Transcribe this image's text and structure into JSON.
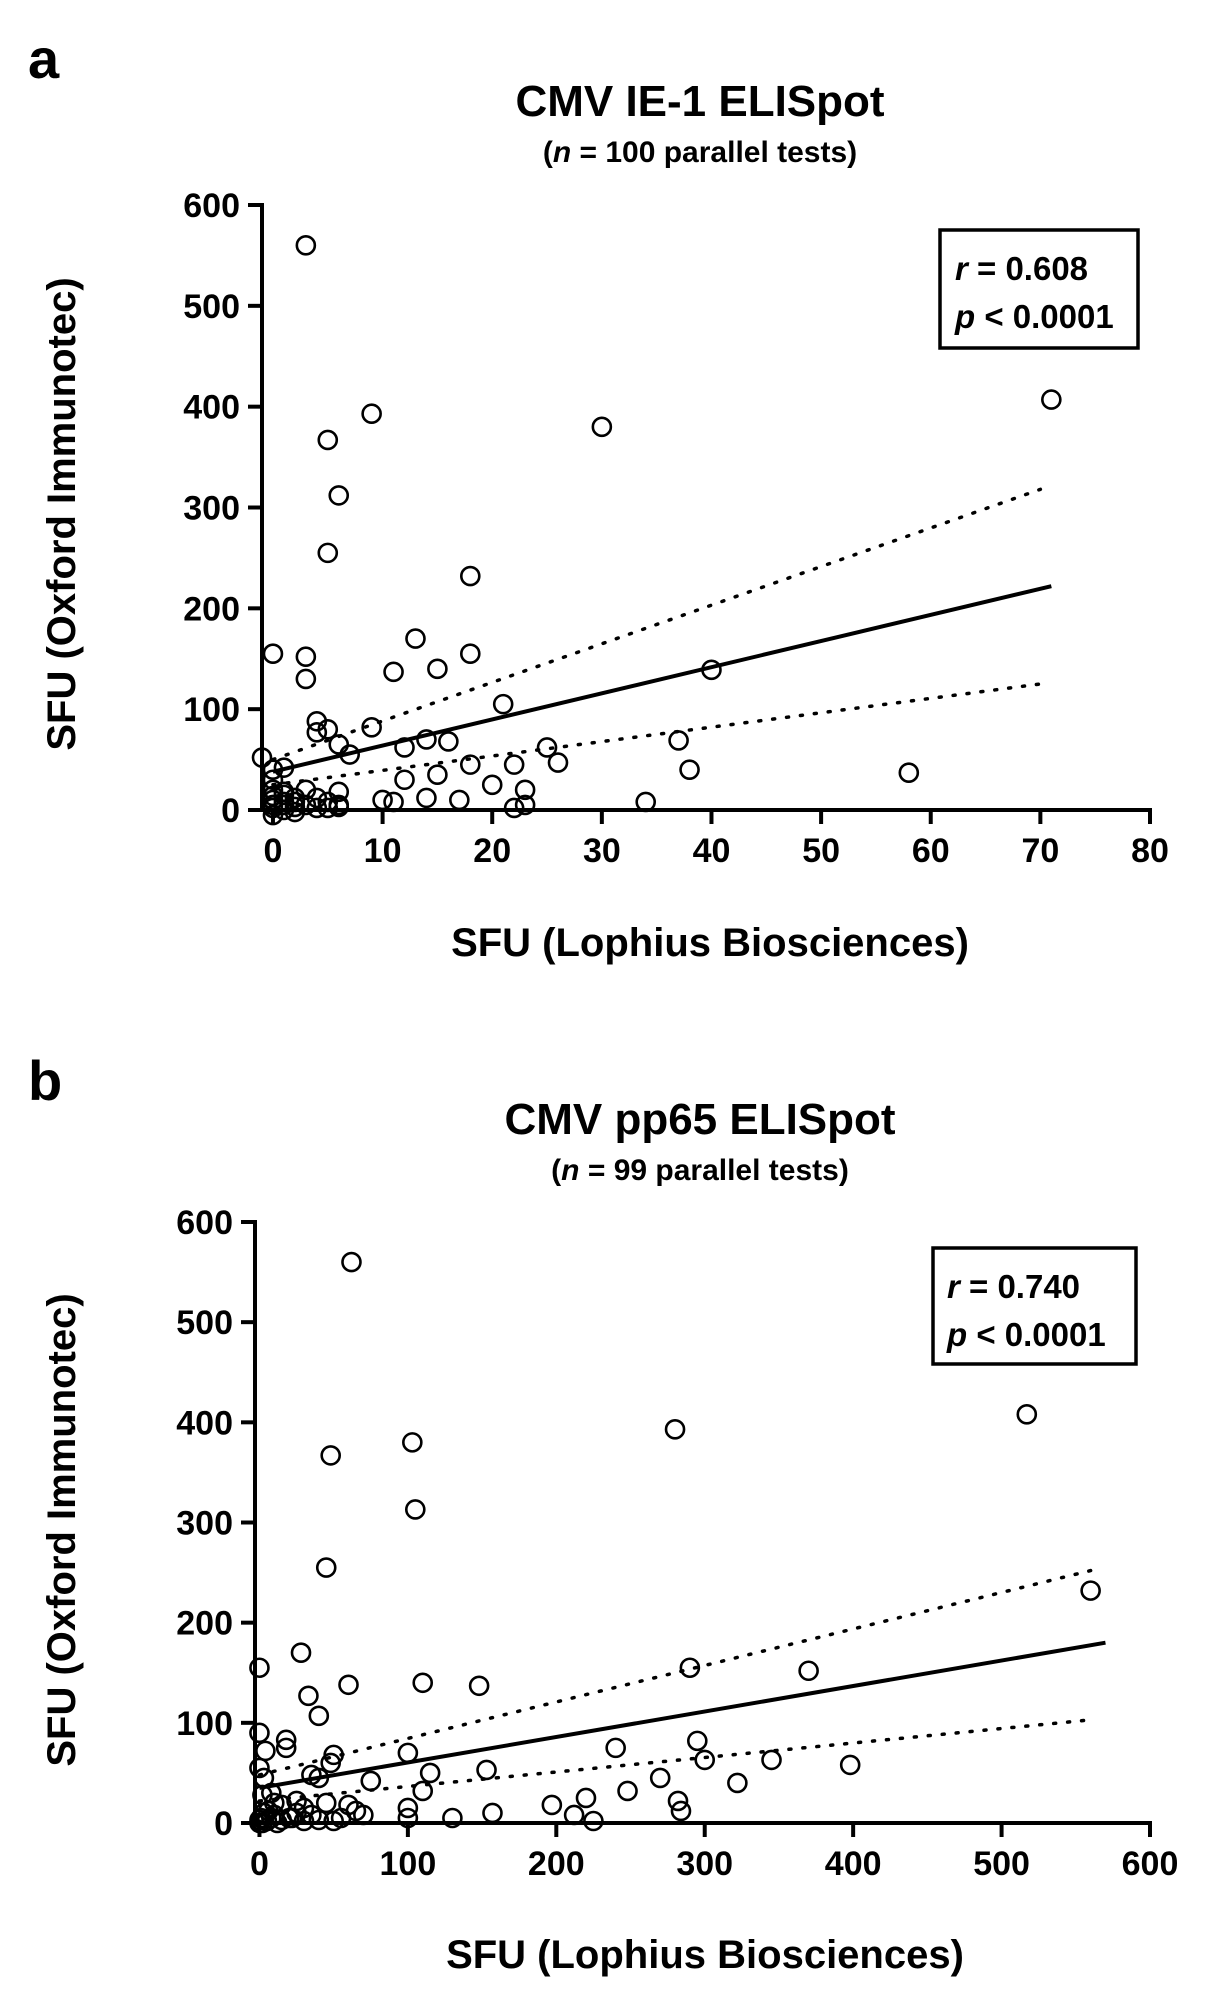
{
  "chart_data": [
    {
      "type": "scatter",
      "panel_label": "a",
      "title": "CMV IE-1 ELISpot",
      "subtitle": {
        "open": "(",
        "n_symbol": "n",
        "rest": " = 100 parallel tests)"
      },
      "xlabel": "SFU (Lophius Biosciences)",
      "ylabel": "SFU (Oxford Immunotec)",
      "xlim": [
        -1,
        80
      ],
      "ylim": [
        0,
        600
      ],
      "xticks": [
        "0",
        "10",
        "20",
        "30",
        "40",
        "50",
        "60",
        "70",
        "80"
      ],
      "yticks": [
        "0",
        "100",
        "200",
        "300",
        "400",
        "500",
        "600"
      ],
      "stats": {
        "r_symbol": "r",
        "r_text": " = 0.608",
        "p_symbol": "p",
        "p_text": " < 0.0001"
      },
      "regression": {
        "x": [
          0,
          71
        ],
        "y": [
          38,
          222
        ]
      },
      "ci_upper": {
        "x": [
          0,
          70
        ],
        "y": [
          50,
          318
        ]
      },
      "ci_lower": {
        "x": [
          0,
          70
        ],
        "y": [
          25,
          125
        ]
      },
      "points": [
        [
          3,
          560
        ],
        [
          9,
          393
        ],
        [
          5,
          367
        ],
        [
          6,
          312
        ],
        [
          30,
          380
        ],
        [
          71,
          407
        ],
        [
          5,
          255
        ],
        [
          18,
          232
        ],
        [
          0,
          155
        ],
        [
          3,
          152
        ],
        [
          13,
          170
        ],
        [
          18,
          155
        ],
        [
          3,
          130
        ],
        [
          11,
          137
        ],
        [
          15,
          140
        ],
        [
          40,
          139
        ],
        [
          4,
          88
        ],
        [
          9,
          82
        ],
        [
          5,
          80
        ],
        [
          4,
          77
        ],
        [
          21,
          105
        ],
        [
          6,
          65
        ],
        [
          7,
          55
        ],
        [
          16,
          68
        ],
        [
          14,
          70
        ],
        [
          12,
          62
        ],
        [
          25,
          62
        ],
        [
          26,
          47
        ],
        [
          37,
          69
        ],
        [
          38,
          40
        ],
        [
          58,
          37
        ],
        [
          -1,
          52
        ],
        [
          0,
          40
        ],
        [
          1,
          42
        ],
        [
          0,
          30
        ],
        [
          0,
          20
        ],
        [
          1,
          15
        ],
        [
          2,
          12
        ],
        [
          0,
          10
        ],
        [
          1,
          8
        ],
        [
          0,
          5
        ],
        [
          0,
          2
        ],
        [
          1,
          0
        ],
        [
          2,
          3
        ],
        [
          3,
          5
        ],
        [
          5,
          8
        ],
        [
          4,
          12
        ],
        [
          6,
          18
        ],
        [
          5,
          2
        ],
        [
          6,
          5
        ],
        [
          10,
          10
        ],
        [
          11,
          8
        ],
        [
          12,
          30
        ],
        [
          14,
          12
        ],
        [
          15,
          35
        ],
        [
          17,
          10
        ],
        [
          18,
          45
        ],
        [
          20,
          25
        ],
        [
          22,
          45
        ],
        [
          22,
          2
        ],
        [
          23,
          20
        ],
        [
          23,
          5
        ],
        [
          34,
          8
        ],
        [
          0,
          -5
        ],
        [
          1,
          5
        ],
        [
          2,
          -2
        ],
        [
          3,
          20
        ],
        [
          4,
          2
        ],
        [
          6,
          3
        ],
        [
          1,
          18
        ],
        [
          2,
          8
        ],
        [
          0,
          14
        ]
      ]
    },
    {
      "type": "scatter",
      "panel_label": "b",
      "title": "CMV pp65 ELISpot",
      "subtitle": {
        "open": "(",
        "n_symbol": "n",
        "rest": " = 99 parallel tests)"
      },
      "xlabel": "SFU (Lophius Biosciences)",
      "ylabel": "SFU (Oxford Immunotec)",
      "xlim": [
        -3,
        600
      ],
      "ylim": [
        0,
        600
      ],
      "xticks": [
        "0",
        "100",
        "200",
        "300",
        "400",
        "500",
        "600"
      ],
      "yticks": [
        "0",
        "100",
        "200",
        "300",
        "400",
        "500",
        "600"
      ],
      "stats": {
        "r_symbol": "r",
        "r_text": " = 0.740",
        "p_symbol": "p",
        "p_text": " < 0.0001"
      },
      "regression": {
        "x": [
          0,
          570
        ],
        "y": [
          35,
          180
        ]
      },
      "ci_upper": {
        "x": [
          0,
          560
        ],
        "y": [
          48,
          252
        ]
      },
      "ci_lower": {
        "x": [
          0,
          560
        ],
        "y": [
          22,
          103
        ]
      },
      "points": [
        [
          62,
          560
        ],
        [
          48,
          367
        ],
        [
          45,
          255
        ],
        [
          103,
          380
        ],
        [
          105,
          313
        ],
        [
          280,
          393
        ],
        [
          517,
          408
        ],
        [
          560,
          232
        ],
        [
          0,
          155
        ],
        [
          28,
          170
        ],
        [
          60,
          138
        ],
        [
          110,
          140
        ],
        [
          148,
          137
        ],
        [
          290,
          155
        ],
        [
          370,
          152
        ],
        [
          33,
          127
        ],
        [
          40,
          107
        ],
        [
          100,
          70
        ],
        [
          0,
          90
        ],
        [
          18,
          83
        ],
        [
          18,
          75
        ],
        [
          50,
          68
        ],
        [
          48,
          60
        ],
        [
          75,
          42
        ],
        [
          110,
          32
        ],
        [
          115,
          50
        ],
        [
          40,
          45
        ],
        [
          35,
          48
        ],
        [
          153,
          53
        ],
        [
          240,
          75
        ],
        [
          295,
          82
        ],
        [
          300,
          63
        ],
        [
          345,
          63
        ],
        [
          398,
          58
        ],
        [
          322,
          40
        ],
        [
          270,
          45
        ],
        [
          248,
          32
        ],
        [
          282,
          22
        ],
        [
          284,
          12
        ],
        [
          220,
          25
        ],
        [
          197,
          18
        ],
        [
          212,
          8
        ],
        [
          225,
          2
        ],
        [
          157,
          10
        ],
        [
          130,
          5
        ],
        [
          100,
          15
        ],
        [
          100,
          5
        ],
        [
          65,
          12
        ],
        [
          70,
          8
        ],
        [
          60,
          18
        ],
        [
          55,
          5
        ],
        [
          50,
          2
        ],
        [
          45,
          20
        ],
        [
          40,
          3
        ],
        [
          30,
          15
        ],
        [
          25,
          10
        ],
        [
          20,
          5
        ],
        [
          15,
          3
        ],
        [
          10,
          20
        ],
        [
          8,
          5
        ],
        [
          5,
          2
        ],
        [
          3,
          10
        ],
        [
          2,
          0
        ],
        [
          0,
          3
        ],
        [
          0,
          55
        ],
        [
          4,
          72
        ],
        [
          5,
          2
        ],
        [
          10,
          8
        ],
        [
          12,
          0
        ],
        [
          15,
          18
        ],
        [
          22,
          5
        ],
        [
          25,
          22
        ],
        [
          30,
          2
        ],
        [
          35,
          8
        ],
        [
          2,
          28
        ],
        [
          6,
          12
        ],
        [
          1,
          5
        ],
        [
          0,
          0
        ],
        [
          8,
          30
        ],
        [
          3,
          45
        ]
      ]
    }
  ]
}
